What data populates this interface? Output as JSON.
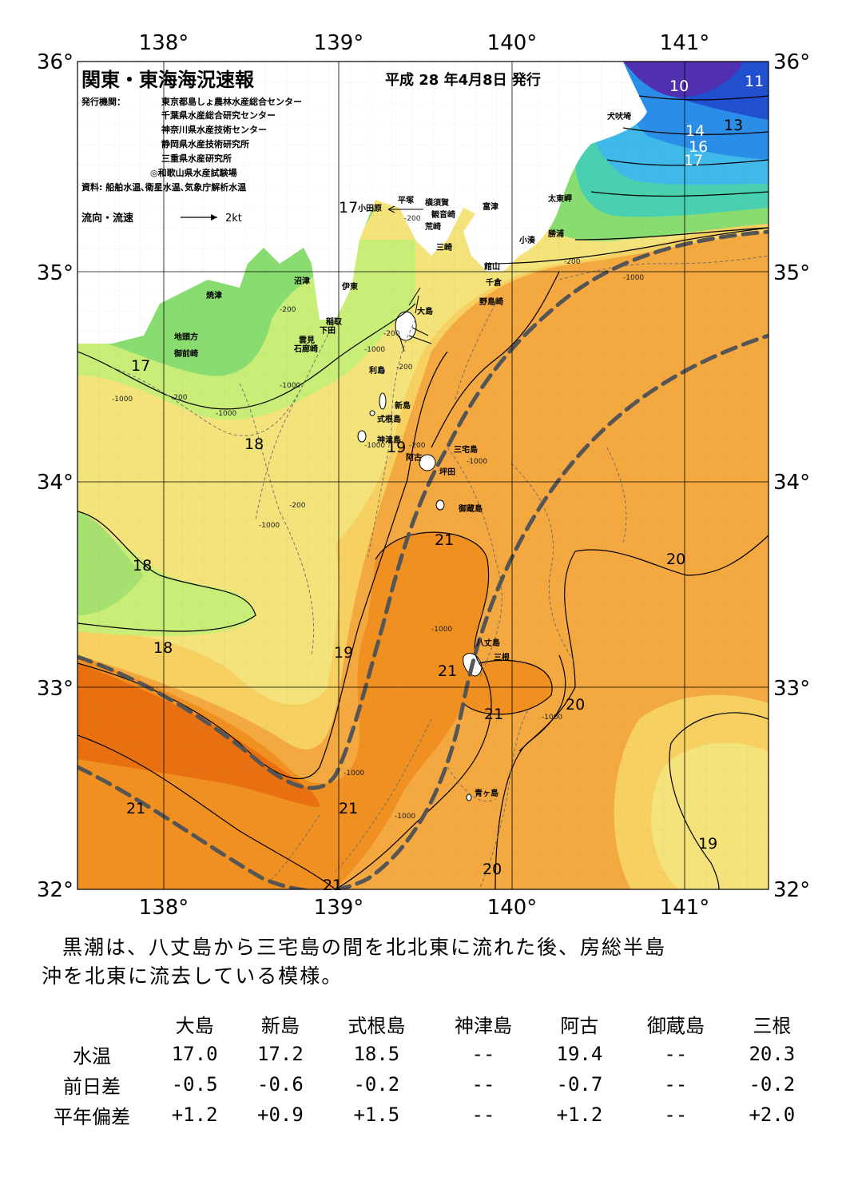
{
  "header": {
    "title": "関東・東海海況速報",
    "date": "平成 28 年4月8日 発行",
    "publisher_label": "発行機関：",
    "publishers": [
      "東京都島しょ農林水産総合センター",
      "千葉県水産総合研究センター",
      "神奈川県水産技術センター",
      "静岡県水産技術研究所",
      "三重県水産研究所",
      "◎和歌山県水産試験場"
    ],
    "source": "資料: 船舶水温､衛星水温､気象庁解析水温",
    "legend_label": "流向・流速",
    "legend_speed": "2kt"
  },
  "axes": {
    "lon_top": [
      "138°",
      "139°",
      "140°",
      "141°"
    ],
    "lon_bottom": [
      "138°",
      "139°",
      "140°",
      "141°"
    ],
    "lat_left": [
      "36°",
      "35°",
      "34°",
      "33°",
      "32°"
    ],
    "lat_right": [
      "36°",
      "35°",
      "34°",
      "33°",
      "32°"
    ]
  },
  "place_labels": [
    "犬吠埼",
    "太東岬",
    "勝浦",
    "小湊",
    "富津",
    "横須賀",
    "観音崎",
    "平塚",
    "小田原",
    "荒崎",
    "三崎",
    "館山",
    "千倉",
    "野島崎",
    "沼津",
    "伊東",
    "大島",
    "稲取",
    "下田",
    "雲見",
    "石廊崎",
    "焼津",
    "地頭方",
    "御前崎",
    "利島",
    "新島",
    "式根島",
    "神津島",
    "阿古",
    "三宅島",
    "坪田",
    "御蔵島",
    "八丈島",
    "三根",
    "青ヶ島"
  ],
  "isotherm_labels": [
    "10",
    "11",
    "13",
    "14",
    "16",
    "17",
    "17",
    "17",
    "18",
    "18",
    "18",
    "19",
    "19",
    "20",
    "20",
    "20",
    "19",
    "21",
    "21",
    "21",
    "21",
    "21",
    "21"
  ],
  "depth_labels": [
    "-200",
    "-200",
    "-200",
    "-200",
    "-200",
    "-200",
    "-200",
    "-200",
    "-1000",
    "-1000",
    "-1000",
    "-1000",
    "-1000",
    "-1000",
    "-1000",
    "-1000",
    "-1000",
    "-1000",
    "-1000",
    "-1000"
  ],
  "summary": {
    "line1": "黒潮は、八丈島から三宅島の間を北北東に流れた後、房総半島",
    "line2": "沖を北東に流去している模様。"
  },
  "table": {
    "stations": [
      "大島",
      "新島",
      "式根島",
      "神津島",
      "阿古",
      "御蔵島",
      "三根"
    ],
    "rows": [
      {
        "label": "水温",
        "values": [
          "17.0",
          "17.2",
          "18.5",
          "--",
          "19.4",
          "--",
          "20.3"
        ]
      },
      {
        "label": "前日差",
        "values": [
          "-0.5",
          "-0.6",
          "-0.2",
          "--",
          "-0.7",
          "--",
          "-0.2"
        ]
      },
      {
        "label": "平年偏差",
        "values": [
          "+1.2",
          "+0.9",
          "+1.5",
          "--",
          "+1.2",
          "--",
          "+2.0"
        ]
      }
    ]
  },
  "colors": {
    "t10": "#5030b0",
    "t11": "#2050d0",
    "t13": "#2a8ee8",
    "t14": "#3fb8ea",
    "t16": "#48d0b0",
    "t17": "#88dc70",
    "t18": "#c8ee78",
    "t19a": "#f4e27a",
    "t19b": "#f6d060",
    "t20": "#f4a840",
    "t21": "#f09020",
    "t22": "#e87010",
    "kuroshio": "#555555"
  }
}
